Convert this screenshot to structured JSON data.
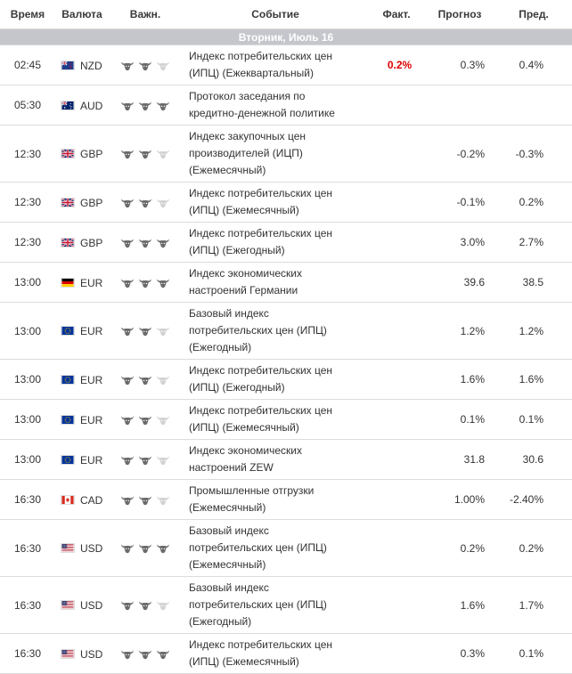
{
  "headers": {
    "time": "Время",
    "currency": "Валюта",
    "importance": "Важн.",
    "event": "Событие",
    "actual": "Факт.",
    "forecast": "Прогноз",
    "previous": "Пред."
  },
  "day_label": "Вторник, Июль 16",
  "colors": {
    "day_bar": "#c4c6cc",
    "actual_red": "#e00000",
    "bull_active": "#6b6b6b",
    "bull_inactive": "#d2d2d2"
  },
  "rows": [
    {
      "time": "02:45",
      "flag": "flag-nz-icon",
      "currency": "NZD",
      "importance": 2,
      "event": [
        "Индекс потребительских цен",
        "(ИПЦ) (Ежеквартальный)"
      ],
      "actual": "0.2%",
      "forecast": "0.3%",
      "previous": "0.4%"
    },
    {
      "time": "05:30",
      "flag": "flag-au-icon",
      "currency": "AUD",
      "importance": 3,
      "event": [
        "Протокол заседания по",
        "кредитно-денежной политике"
      ],
      "actual": "",
      "forecast": "",
      "previous": ""
    },
    {
      "time": "12:30",
      "flag": "flag-gb-icon",
      "currency": "GBP",
      "importance": 2,
      "event": [
        "Индекс закупочных цен",
        "производителей (ИЦП)",
        "(Ежемесячный)"
      ],
      "actual": "",
      "forecast": "-0.2%",
      "previous": "-0.3%"
    },
    {
      "time": "12:30",
      "flag": "flag-gb-icon",
      "currency": "GBP",
      "importance": 2,
      "event": [
        "Индекс потребительских цен",
        "(ИПЦ) (Ежемесячный)"
      ],
      "actual": "",
      "forecast": "-0.1%",
      "previous": "0.2%"
    },
    {
      "time": "12:30",
      "flag": "flag-gb-icon",
      "currency": "GBP",
      "importance": 3,
      "event": [
        "Индекс потребительских цен",
        "(ИПЦ) (Ежегодный)"
      ],
      "actual": "",
      "forecast": "3.0%",
      "previous": "2.7%"
    },
    {
      "time": "13:00",
      "flag": "flag-de-icon",
      "currency": "EUR",
      "importance": 3,
      "event": [
        "Индекс экономических",
        "настроений Германии"
      ],
      "actual": "",
      "forecast": "39.6",
      "previous": "38.5"
    },
    {
      "time": "13:00",
      "flag": "flag-eu-icon",
      "currency": "EUR",
      "importance": 2,
      "event": [
        "Базовый индекс",
        "потребительских цен (ИПЦ)",
        "(Ежегодный)"
      ],
      "actual": "",
      "forecast": "1.2%",
      "previous": "1.2%"
    },
    {
      "time": "13:00",
      "flag": "flag-eu-icon",
      "currency": "EUR",
      "importance": 2,
      "event": [
        "Индекс потребительских цен",
        "(ИПЦ) (Ежегодный)"
      ],
      "actual": "",
      "forecast": "1.6%",
      "previous": "1.6%"
    },
    {
      "time": "13:00",
      "flag": "flag-eu-icon",
      "currency": "EUR",
      "importance": 2,
      "event": [
        "Индекс потребительских цен",
        "(ИПЦ) (Ежемесячный)"
      ],
      "actual": "",
      "forecast": "0.1%",
      "previous": "0.1%"
    },
    {
      "time": "13:00",
      "flag": "flag-eu-icon",
      "currency": "EUR",
      "importance": 2,
      "event": [
        "Индекс экономических",
        "настроений ZEW"
      ],
      "actual": "",
      "forecast": "31.8",
      "previous": "30.6"
    },
    {
      "time": "16:30",
      "flag": "flag-ca-icon",
      "currency": "CAD",
      "importance": 2,
      "event": [
        "Промышленные отгрузки",
        "(Ежемесячный)"
      ],
      "actual": "",
      "forecast": "1.00%",
      "previous": "-2.40%"
    },
    {
      "time": "16:30",
      "flag": "flag-us-icon",
      "currency": "USD",
      "importance": 3,
      "event": [
        "Базовый индекс",
        "потребительских цен (ИПЦ)",
        "(Ежемесячный)"
      ],
      "actual": "",
      "forecast": "0.2%",
      "previous": "0.2%"
    },
    {
      "time": "16:30",
      "flag": "flag-us-icon",
      "currency": "USD",
      "importance": 2,
      "event": [
        "Базовый индекс",
        "потребительских цен (ИПЦ)",
        "(Ежегодный)"
      ],
      "actual": "",
      "forecast": "1.6%",
      "previous": "1.7%"
    },
    {
      "time": "16:30",
      "flag": "flag-us-icon",
      "currency": "USD",
      "importance": 3,
      "event": [
        "Индекс потребительских цен",
        "(ИПЦ) (Ежемесячный)"
      ],
      "actual": "",
      "forecast": "0.3%",
      "previous": "0.1%"
    }
  ]
}
